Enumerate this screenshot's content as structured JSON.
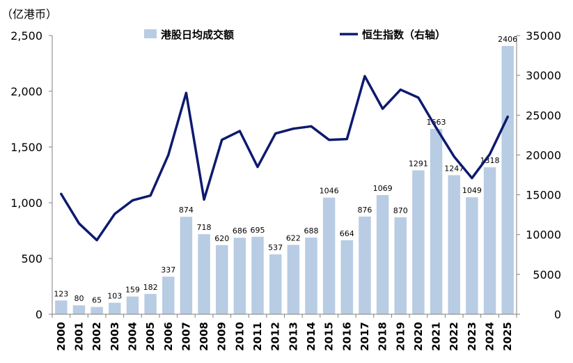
{
  "chart_data": {
    "type": "bar",
    "y_unit": "（亿港币）",
    "categories": [
      "2000",
      "2001",
      "2002",
      "2003",
      "2004",
      "2005",
      "2006",
      "2007",
      "2008",
      "2009",
      "2010",
      "2011",
      "2012",
      "2013",
      "2014",
      "2015",
      "2016",
      "2017",
      "2018",
      "2019",
      "2020",
      "2021",
      "2022",
      "2023",
      "2024",
      "2025"
    ],
    "series": [
      {
        "name": "港股日均成交额",
        "type": "bar",
        "axis": "left",
        "color": "#b8cce4",
        "values": [
          123,
          80,
          65,
          103,
          159,
          182,
          337,
          874,
          718,
          620,
          686,
          695,
          537,
          622,
          688,
          1046,
          664,
          876,
          1069,
          870,
          1291,
          1663,
          1247,
          1049,
          1318,
          2406
        ]
      },
      {
        "name": "恒生指数（右轴）",
        "type": "line",
        "axis": "right",
        "color": "#0d1a6e",
        "values": [
          15100,
          11400,
          9300,
          12600,
          14300,
          14900,
          20000,
          27800,
          14400,
          21900,
          23000,
          18500,
          22700,
          23300,
          23600,
          21900,
          22000,
          29900,
          25800,
          28200,
          27200,
          23400,
          19800,
          17100,
          20100,
          24800
        ]
      }
    ],
    "left_axis": {
      "min": 0,
      "max": 2500,
      "ticks": [
        "0",
        "500",
        "1,000",
        "1,500",
        "2,000",
        "2,500"
      ]
    },
    "right_axis": {
      "min": 0,
      "max": 35000,
      "ticks": [
        "0",
        "5000",
        "10000",
        "15000",
        "20000",
        "25000",
        "30000",
        "35000"
      ]
    },
    "legend_position": "top",
    "grid": false
  }
}
